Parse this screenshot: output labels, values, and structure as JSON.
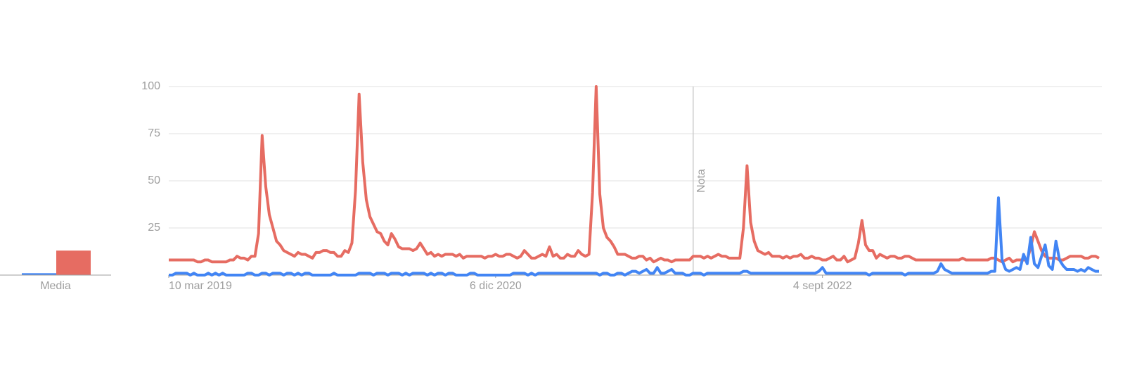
{
  "chart_data": [
    {
      "type": "line",
      "xlim": [
        0,
        259
      ],
      "xticks": [
        {
          "value": 0,
          "label": "10 mar 2019"
        },
        {
          "value": 91,
          "label": "6 dic 2020"
        },
        {
          "value": 182,
          "label": "4 sept 2022"
        }
      ],
      "ylim": [
        0,
        100
      ],
      "yticks": [
        25,
        50,
        75,
        100
      ],
      "grid": true,
      "annotations": [
        {
          "text": "Nota",
          "x": 146
        }
      ],
      "series": [
        {
          "color": "#4285f4",
          "values": [
            0,
            0,
            1,
            1,
            1,
            1,
            0,
            1,
            0,
            0,
            0,
            1,
            0,
            1,
            0,
            1,
            0,
            0,
            0,
            0,
            0,
            0,
            1,
            1,
            0,
            0,
            1,
            1,
            0,
            1,
            1,
            1,
            0,
            1,
            1,
            0,
            1,
            0,
            1,
            1,
            0,
            0,
            0,
            0,
            0,
            0,
            1,
            0,
            0,
            0,
            0,
            0,
            0,
            1,
            1,
            1,
            1,
            0,
            1,
            1,
            1,
            0,
            1,
            1,
            1,
            0,
            1,
            0,
            1,
            1,
            1,
            1,
            0,
            1,
            0,
            1,
            1,
            0,
            1,
            1,
            0,
            0,
            0,
            0,
            1,
            1,
            0,
            0,
            0,
            0,
            0,
            0,
            0,
            0,
            0,
            0,
            1,
            1,
            1,
            1,
            0,
            1,
            0,
            1,
            1,
            1,
            1,
            1,
            1,
            1,
            1,
            1,
            1,
            1,
            1,
            1,
            1,
            1,
            1,
            1,
            0,
            1,
            1,
            0,
            0,
            1,
            1,
            0,
            1,
            2,
            2,
            1,
            2,
            3,
            1,
            1,
            4,
            1,
            1,
            2,
            3,
            1,
            1,
            1,
            0,
            0,
            1,
            1,
            1,
            0,
            1,
            1,
            1,
            1,
            1,
            1,
            1,
            1,
            1,
            1,
            2,
            2,
            1,
            1,
            1,
            1,
            1,
            1,
            1,
            1,
            1,
            1,
            1,
            1,
            1,
            1,
            1,
            1,
            1,
            1,
            1,
            2,
            4,
            1,
            1,
            1,
            1,
            1,
            1,
            1,
            1,
            1,
            1,
            1,
            1,
            0,
            1,
            1,
            1,
            1,
            1,
            1,
            1,
            1,
            1,
            0,
            1,
            1,
            1,
            1,
            1,
            1,
            1,
            1,
            2,
            6,
            3,
            2,
            1,
            1,
            1,
            1,
            1,
            1,
            1,
            1,
            1,
            1,
            1,
            2,
            2,
            41,
            8,
            3,
            2,
            3,
            4,
            3,
            11,
            6,
            20,
            6,
            4,
            10,
            16,
            5,
            3,
            18,
            8,
            5,
            3,
            3,
            3,
            2,
            3,
            2,
            4,
            3,
            2,
            2
          ]
        },
        {
          "color": "#e66c62",
          "values": [
            8,
            8,
            8,
            8,
            8,
            8,
            8,
            8,
            7,
            7,
            8,
            8,
            7,
            7,
            7,
            7,
            7,
            8,
            8,
            10,
            9,
            9,
            8,
            10,
            10,
            22,
            74,
            47,
            32,
            25,
            18,
            16,
            13,
            12,
            11,
            10,
            12,
            11,
            11,
            10,
            9,
            12,
            12,
            13,
            13,
            12,
            12,
            10,
            10,
            13,
            12,
            17,
            45,
            96,
            60,
            40,
            31,
            27,
            23,
            22,
            18,
            16,
            22,
            19,
            15,
            14,
            14,
            14,
            13,
            14,
            17,
            14,
            11,
            12,
            10,
            11,
            10,
            11,
            11,
            11,
            10,
            11,
            9,
            10,
            10,
            10,
            10,
            10,
            9,
            10,
            10,
            11,
            10,
            10,
            11,
            11,
            10,
            9,
            10,
            13,
            11,
            9,
            9,
            10,
            11,
            10,
            15,
            10,
            11,
            9,
            9,
            11,
            10,
            10,
            13,
            11,
            10,
            11,
            44,
            100,
            43,
            25,
            20,
            18,
            15,
            11,
            11,
            11,
            10,
            9,
            9,
            10,
            10,
            8,
            9,
            7,
            8,
            9,
            8,
            8,
            7,
            8,
            8,
            8,
            8,
            8,
            10,
            10,
            10,
            9,
            10,
            9,
            10,
            11,
            10,
            10,
            9,
            9,
            9,
            9,
            25,
            58,
            28,
            18,
            13,
            12,
            11,
            12,
            10,
            10,
            10,
            9,
            10,
            9,
            10,
            10,
            11,
            9,
            9,
            10,
            9,
            9,
            8,
            8,
            9,
            10,
            8,
            8,
            10,
            7,
            8,
            9,
            17,
            29,
            16,
            13,
            13,
            9,
            11,
            10,
            9,
            10,
            10,
            9,
            9,
            10,
            10,
            9,
            8,
            8,
            8,
            8,
            8,
            8,
            8,
            8,
            8,
            8,
            8,
            8,
            8,
            9,
            8,
            8,
            8,
            8,
            8,
            8,
            8,
            9,
            9,
            8,
            7,
            8,
            9,
            7,
            8,
            8,
            8,
            8,
            15,
            23,
            18,
            13,
            10,
            9,
            9,
            9,
            8,
            8,
            9,
            10,
            10,
            10,
            10,
            9,
            9,
            10,
            10,
            9
          ]
        }
      ]
    },
    {
      "type": "bar",
      "categories": [
        "Media"
      ],
      "ylim": [
        0,
        100
      ],
      "series": [
        {
          "color": "#4285f4",
          "values": [
            1
          ]
        },
        {
          "color": "#e66c62",
          "values": [
            13
          ]
        }
      ]
    }
  ]
}
